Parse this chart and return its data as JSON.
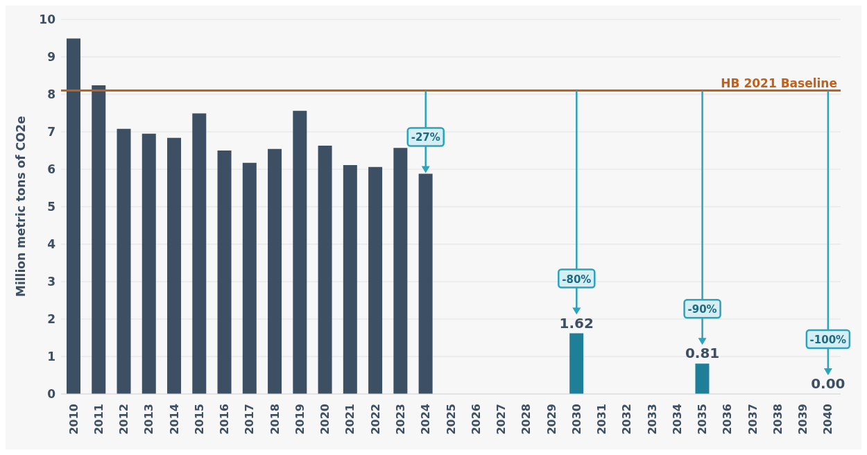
{
  "chart_data": {
    "type": "bar",
    "ylabel": "Million metric tons of CO2e",
    "categories": [
      "2010",
      "2011",
      "2012",
      "2013",
      "2014",
      "2015",
      "2016",
      "2017",
      "2018",
      "2019",
      "2020",
      "2021",
      "2022",
      "2023",
      "2024",
      "2025",
      "2026",
      "2027",
      "2028",
      "2029",
      "2030",
      "2031",
      "2032",
      "2033",
      "2034",
      "2035",
      "2036",
      "2037",
      "2038",
      "2039",
      "2040"
    ],
    "values": [
      9.49,
      8.24,
      7.08,
      6.95,
      6.84,
      7.49,
      6.5,
      6.17,
      6.54,
      7.56,
      6.63,
      6.11,
      6.06,
      6.57,
      5.88,
      null,
      null,
      null,
      null,
      null,
      1.62,
      null,
      null,
      null,
      null,
      0.81,
      null,
      null,
      null,
      null,
      0
    ],
    "colors": [
      "#3d4f63",
      "#3d4f63",
      "#3d4f63",
      "#3d4f63",
      "#3d4f63",
      "#3d4f63",
      "#3d4f63",
      "#3d4f63",
      "#3d4f63",
      "#3d4f63",
      "#3d4f63",
      "#3d4f63",
      "#3d4f63",
      "#3d4f63",
      "#3d4f63",
      null,
      null,
      null,
      null,
      null,
      "#1f7f99",
      null,
      null,
      null,
      null,
      "#1f7f99",
      null,
      null,
      null,
      null,
      "#1f7f99"
    ],
    "value_labels": [
      null,
      null,
      null,
      null,
      null,
      null,
      null,
      null,
      null,
      null,
      null,
      null,
      null,
      null,
      null,
      null,
      null,
      null,
      null,
      null,
      "1.62",
      null,
      null,
      null,
      null,
      "0.81",
      null,
      null,
      null,
      null,
      "0.00"
    ],
    "ylim": [
      0,
      10
    ],
    "yticks": [
      0,
      1,
      2,
      3,
      4,
      5,
      6,
      7,
      8,
      9,
      10
    ],
    "grid": "y",
    "ref_lines": [
      {
        "axis": "y",
        "value": 8.1,
        "label": "HB 2021 Baseline",
        "color": "#c0601a"
      }
    ],
    "annotations": [
      {
        "text": "-27%",
        "x": "2024",
        "y": 5.88
      },
      "-80%",
      "-90%",
      "-100%"
    ]
  }
}
